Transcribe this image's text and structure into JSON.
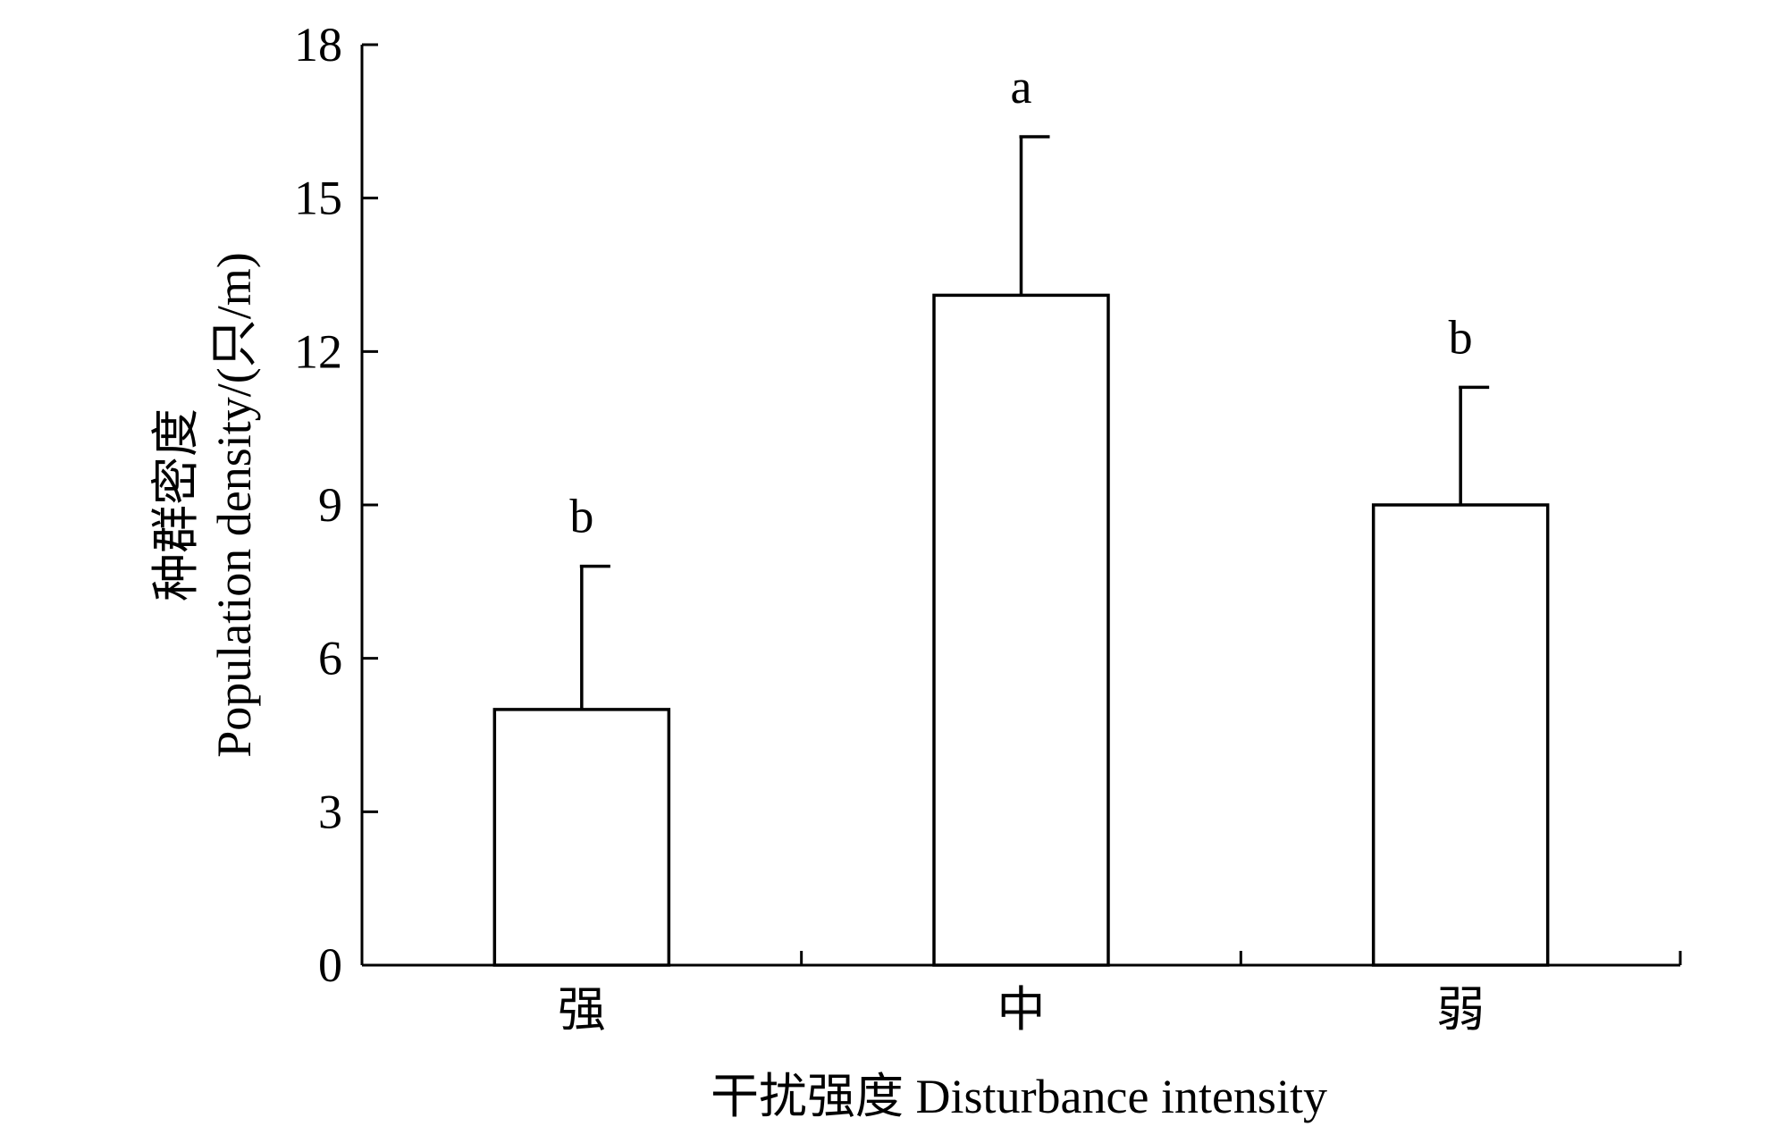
{
  "chart_data": {
    "type": "bar",
    "title": "",
    "categories": [
      "强",
      "中",
      "弱"
    ],
    "values": [
      5.0,
      13.1,
      9.0
    ],
    "errors": [
      2.8,
      3.1,
      2.3
    ],
    "significance": [
      "b",
      "a",
      "b"
    ],
    "xlabel": "干扰强度 Disturbance intensity",
    "ylabel_cn": "种群密度",
    "ylabel_en": "Population density/(只/m)",
    "ylim": [
      0,
      18
    ],
    "yticks": [
      0,
      3,
      6,
      9,
      12,
      15,
      18
    ],
    "grid": false,
    "legend": "none",
    "bar_fill": "#ffffff",
    "stroke_color": "#000000"
  }
}
